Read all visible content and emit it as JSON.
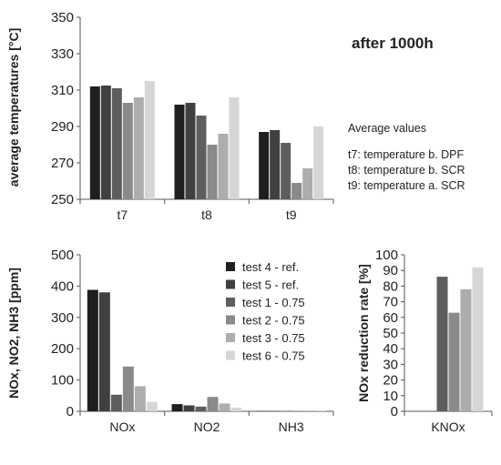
{
  "colors": [
    "#1f1f1f",
    "#404040",
    "#5e5e5e",
    "#8a8a8a",
    "#adadad",
    "#d6d6d6"
  ],
  "annotations": {
    "after": "after 1000h",
    "avg_title": "Average values",
    "avg_lines": [
      "t7: temperature b. DPF",
      "t8: temperature b. SCR",
      "t9: temperature a. SCR"
    ]
  },
  "chart_data": [
    {
      "type": "bar",
      "categories": [
        "t7",
        "t8",
        "t9"
      ],
      "ylabel": "average temperatures [°C]",
      "ylim": [
        250,
        350
      ],
      "yticks": [
        250,
        270,
        290,
        310,
        330,
        350
      ],
      "series": [
        {
          "name": "test 4 - ref.",
          "values": [
            312,
            302,
            287
          ]
        },
        {
          "name": "test 5 - ref.",
          "values": [
            312.5,
            303,
            288
          ]
        },
        {
          "name": "test 1 - 0.75",
          "values": [
            311,
            296,
            281
          ]
        },
        {
          "name": "test 2 - 0.75",
          "values": [
            303,
            280,
            259
          ]
        },
        {
          "name": "test 3 - 0.75",
          "values": [
            306,
            286,
            267
          ]
        },
        {
          "name": "test 6 - 0.75",
          "values": [
            315,
            306,
            290
          ]
        }
      ]
    },
    {
      "type": "bar",
      "categories": [
        "NOx",
        "NO2",
        "NH3"
      ],
      "ylabel": "NOx, NO2, NH3 [ppm]",
      "ylim": [
        0,
        500
      ],
      "yticks": [
        0,
        100,
        200,
        300,
        400,
        500
      ],
      "legend": "top-right",
      "series": [
        {
          "name": "test 4 - ref.",
          "values": [
            388,
            23,
            1
          ]
        },
        {
          "name": "test 5 - ref.",
          "values": [
            380,
            19,
            1
          ]
        },
        {
          "name": "test 1 - 0.75",
          "values": [
            53,
            15,
            1
          ]
        },
        {
          "name": "test 2 - 0.75",
          "values": [
            143,
            46,
            1
          ]
        },
        {
          "name": "test 3 - 0.75",
          "values": [
            80,
            25,
            1
          ]
        },
        {
          "name": "test 6 - 0.75",
          "values": [
            30,
            12,
            3
          ]
        }
      ]
    },
    {
      "type": "bar",
      "categories": [
        "KNOx"
      ],
      "ylabel": "NOx reduction rate [%]",
      "ylim": [
        0,
        100
      ],
      "yticks": [
        0,
        10,
        20,
        30,
        40,
        50,
        60,
        70,
        80,
        90,
        100
      ],
      "series": [
        {
          "name": "test 4 - ref.",
          "values": [
            0
          ]
        },
        {
          "name": "test 5 - ref.",
          "values": [
            0
          ]
        },
        {
          "name": "test 1 - 0.75",
          "values": [
            86
          ]
        },
        {
          "name": "test 2 - 0.75",
          "values": [
            63
          ]
        },
        {
          "name": "test 3 - 0.75",
          "values": [
            78
          ]
        },
        {
          "name": "test 6 - 0.75",
          "values": [
            92
          ]
        }
      ]
    }
  ]
}
